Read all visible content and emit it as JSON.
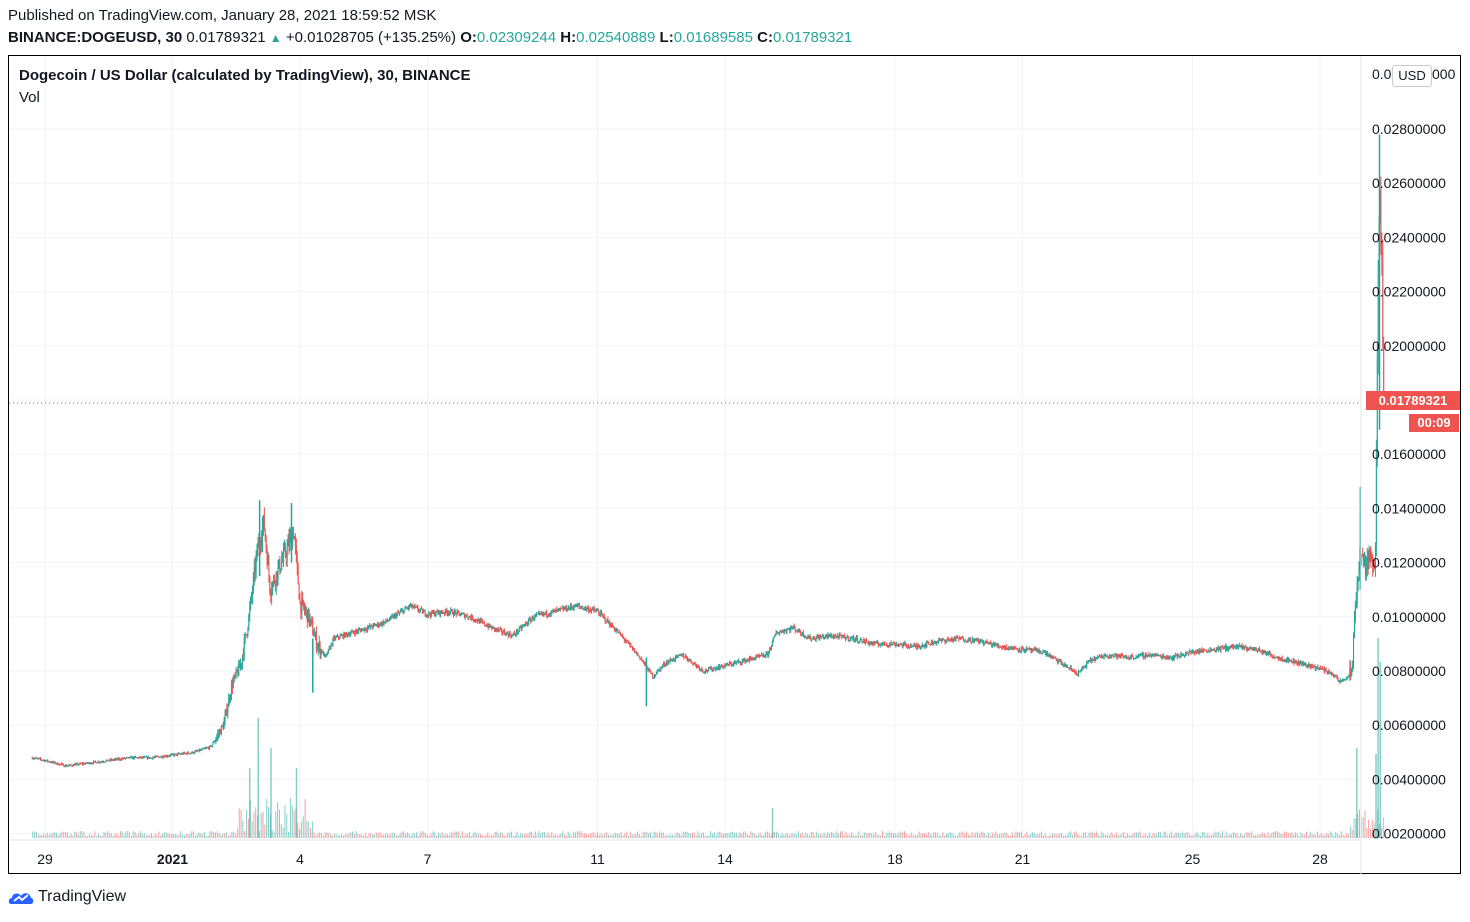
{
  "header": {
    "published": "Published on TradingView.com, January 28, 2021 18:59:52 MSK",
    "symbol": "BINANCE:DOGEUSD, 30",
    "last": "0.01789321",
    "change": "+0.01028705 (+135.25%)",
    "o_label": "O:",
    "o_value": "0.02309244",
    "h_label": "H:",
    "h_value": "0.02540889",
    "l_label": "L:",
    "l_value": "0.01689585",
    "c_label": "C:",
    "c_value": "0.01789321"
  },
  "chart_title": "Dogecoin / US Dollar (calculated by TradingView), 30, BINANCE",
  "vol_label": "Vol",
  "currency_button": "USD",
  "price_tag": "0.01789321",
  "countdown_tag": "00:09",
  "brand": "TradingView",
  "colors": {
    "up": "#26a69a",
    "down": "#ef5350",
    "grid": "#f0f3fa",
    "last_line": "#ef5350"
  },
  "chart_data": {
    "type": "candlestick",
    "title": "Dogecoin / US Dollar (calculated by TradingView), 30, BINANCE",
    "interval": "30",
    "currency": "USD",
    "ylim": [
      0.0018,
      0.03
    ],
    "y_ticks": [
      "0.02800000",
      "0.02600000",
      "0.02400000",
      "0.02200000",
      "0.02000000",
      "0.01800000",
      "0.01600000",
      "0.01400000",
      "0.01200000",
      "0.01000000",
      "0.00800000",
      "0.00600000",
      "0.00400000",
      "0.00200000"
    ],
    "y_tick_values": [
      0.028,
      0.026,
      0.024,
      0.022,
      0.02,
      0.018,
      0.016,
      0.014,
      0.012,
      0.01,
      0.008,
      0.006,
      0.004,
      0.002
    ],
    "y_top_tick_partial": "0.0",
    "y_top_tick_tail": "000",
    "x_ticks": [
      {
        "label": "29",
        "day": 0,
        "bold": false
      },
      {
        "label": "2021",
        "day": 3,
        "bold": true
      },
      {
        "label": "4",
        "day": 6,
        "bold": false
      },
      {
        "label": "7",
        "day": 9,
        "bold": false
      },
      {
        "label": "11",
        "day": 13,
        "bold": false
      },
      {
        "label": "14",
        "day": 16,
        "bold": false
      },
      {
        "label": "18",
        "day": 20,
        "bold": false
      },
      {
        "label": "21",
        "day": 23,
        "bold": false
      },
      {
        "label": "25",
        "day": 27,
        "bold": false
      },
      {
        "label": "28",
        "day": 30,
        "bold": false
      }
    ],
    "last_price": 0.01789321,
    "price_path": [
      [
        -0.3,
        0.0048
      ],
      [
        0,
        0.0047
      ],
      [
        0.5,
        0.0045
      ],
      [
        1,
        0.0046
      ],
      [
        1.5,
        0.0047
      ],
      [
        2,
        0.0048
      ],
      [
        2.5,
        0.0048
      ],
      [
        3,
        0.0049
      ],
      [
        3.5,
        0.005
      ],
      [
        3.9,
        0.0052
      ],
      [
        4.2,
        0.006
      ],
      [
        4.4,
        0.0075
      ],
      [
        4.6,
        0.0082
      ],
      [
        4.8,
        0.01
      ],
      [
        5.0,
        0.0125
      ],
      [
        5.15,
        0.0135
      ],
      [
        5.3,
        0.011
      ],
      [
        5.5,
        0.0118
      ],
      [
        5.7,
        0.0125
      ],
      [
        5.85,
        0.0132
      ],
      [
        6.0,
        0.0105
      ],
      [
        6.2,
        0.01
      ],
      [
        6.4,
        0.009
      ],
      [
        6.6,
        0.0085
      ],
      [
        6.8,
        0.0092
      ],
      [
        7.2,
        0.0094
      ],
      [
        7.6,
        0.0096
      ],
      [
        8,
        0.0098
      ],
      [
        8.6,
        0.0104
      ],
      [
        9,
        0.0101
      ],
      [
        9.5,
        0.0102
      ],
      [
        10,
        0.01
      ],
      [
        10.5,
        0.0096
      ],
      [
        11,
        0.0093
      ],
      [
        11.5,
        0.01
      ],
      [
        12,
        0.0102
      ],
      [
        12.5,
        0.0104
      ],
      [
        13,
        0.0102
      ],
      [
        13.5,
        0.0094
      ],
      [
        14,
        0.0085
      ],
      [
        14.3,
        0.0078
      ],
      [
        14.6,
        0.0083
      ],
      [
        15,
        0.0086
      ],
      [
        15.5,
        0.008
      ],
      [
        16,
        0.0082
      ],
      [
        16.5,
        0.0084
      ],
      [
        17,
        0.0086
      ],
      [
        17.2,
        0.0094
      ],
      [
        17.6,
        0.0096
      ],
      [
        18,
        0.0092
      ],
      [
        18.5,
        0.0093
      ],
      [
        19,
        0.0092
      ],
      [
        19.5,
        0.009
      ],
      [
        20,
        0.009
      ],
      [
        20.5,
        0.0089
      ],
      [
        21,
        0.0091
      ],
      [
        21.5,
        0.0092
      ],
      [
        22,
        0.0091
      ],
      [
        22.5,
        0.0089
      ],
      [
        23,
        0.0088
      ],
      [
        23.5,
        0.0087
      ],
      [
        24,
        0.0082
      ],
      [
        24.3,
        0.0079
      ],
      [
        24.6,
        0.0084
      ],
      [
        25,
        0.0086
      ],
      [
        25.5,
        0.0085
      ],
      [
        26,
        0.0086
      ],
      [
        26.5,
        0.0085
      ],
      [
        27,
        0.0087
      ],
      [
        27.5,
        0.0088
      ],
      [
        28,
        0.0089
      ],
      [
        28.5,
        0.0088
      ],
      [
        29,
        0.0085
      ],
      [
        29.5,
        0.0083
      ],
      [
        30,
        0.0081
      ],
      [
        30.3,
        0.0079
      ],
      [
        30.45,
        0.0076
      ],
      [
        30.6,
        0.0077
      ],
      [
        30.75,
        0.008
      ],
      [
        30.85,
        0.0108
      ],
      [
        30.95,
        0.0125
      ],
      [
        31.05,
        0.0118
      ],
      [
        31.2,
        0.0122
      ],
      [
        31.3,
        0.012
      ],
      [
        31.35,
        0.02
      ],
      [
        31.4,
        0.0255
      ],
      [
        31.45,
        0.0231
      ],
      [
        31.5,
        0.0179
      ]
    ],
    "wick_extremes": [
      {
        "day": 5.05,
        "high": 0.0143,
        "low": 0.0115
      },
      {
        "day": 5.8,
        "high": 0.0142,
        "low": 0.012
      },
      {
        "day": 6.3,
        "high": 0.0092,
        "low": 0.0072
      },
      {
        "day": 14.15,
        "high": 0.0085,
        "low": 0.0067
      },
      {
        "day": 30.95,
        "high": 0.0148,
        "low": 0.011
      },
      {
        "day": 31.4,
        "high": 0.0278,
        "low": 0.0169
      }
    ],
    "volume_spikes": [
      {
        "day": 4.8,
        "level": 0.35
      },
      {
        "day": 5.0,
        "level": 0.6
      },
      {
        "day": 5.3,
        "level": 0.45
      },
      {
        "day": 5.9,
        "level": 0.35
      },
      {
        "day": 17.1,
        "level": 0.15
      },
      {
        "day": 30.85,
        "level": 0.45
      },
      {
        "day": 31.3,
        "level": 0.42
      },
      {
        "day": 31.35,
        "level": 1.0
      },
      {
        "day": 31.4,
        "level": 0.88
      }
    ]
  }
}
